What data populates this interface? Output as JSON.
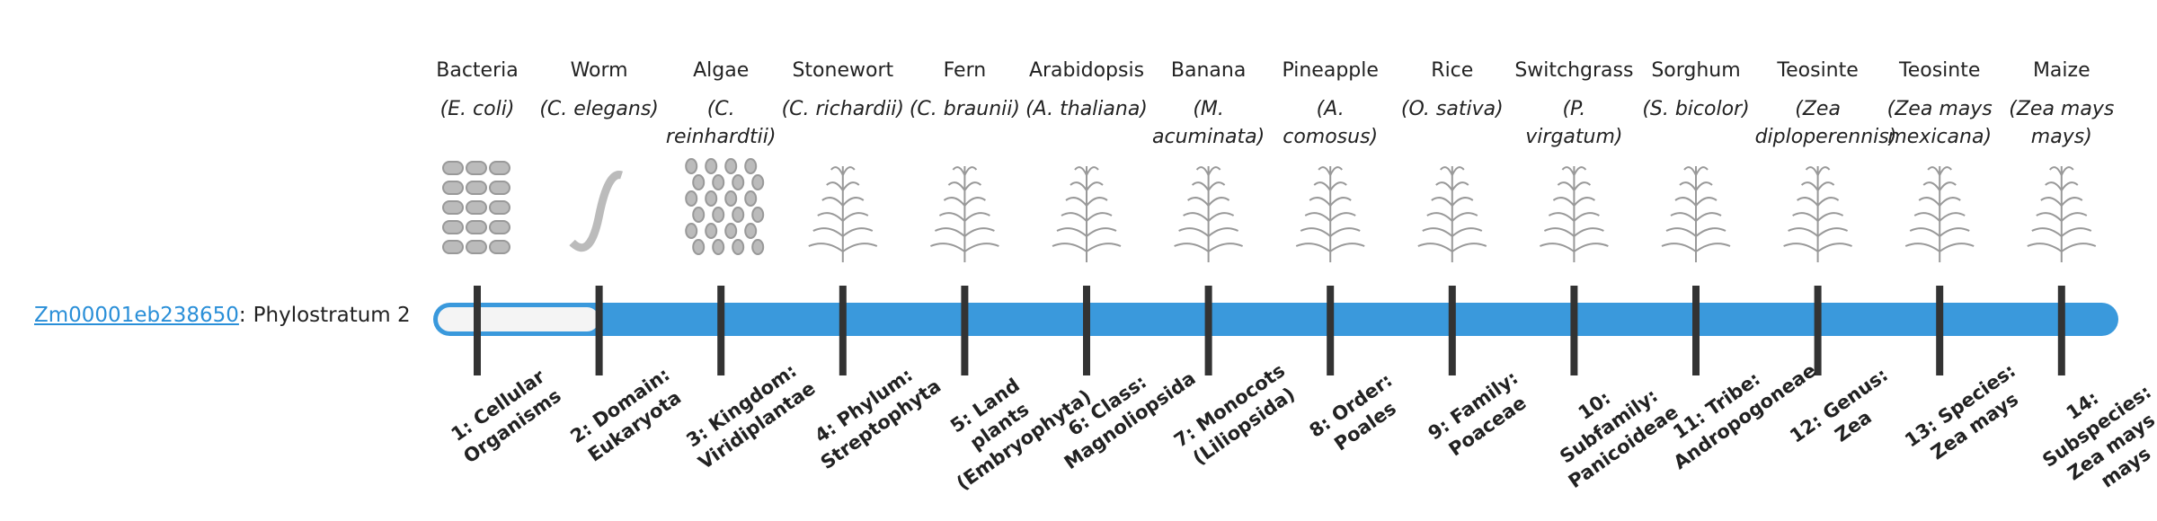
{
  "gene": {
    "gene_id": "Zm00001eb238650",
    "separator": ":",
    "stratum_label": "Phylostratum",
    "stratum": 2
  },
  "columns": [
    {
      "name": "Bacteria",
      "species": "(E. coli)",
      "label": "1: Cellular Organisms"
    },
    {
      "name": "Worm",
      "species": "(C. elegans)",
      "label": "2: Domain: Eukaryota"
    },
    {
      "name": "Algae",
      "species": "(C. reinhardtii)",
      "label": "3: Kingdom: Viridiplantae"
    },
    {
      "name": "Stonewort",
      "species": "(C. richardii)",
      "label": "4: Phylum: Streptophyta"
    },
    {
      "name": "Fern",
      "species": "(C. braunii)",
      "label": "5: Land plants (Embryophyta)"
    },
    {
      "name": "Arabidopsis",
      "species": "(A. thaliana)",
      "label": "6: Class: Magnoliopsida"
    },
    {
      "name": "Banana",
      "species": "(M. acuminata)",
      "label": "7: Monocots (Liliopsida)"
    },
    {
      "name": "Pineapple",
      "species": "(A. comosus)",
      "label": "8: Order: Poales"
    },
    {
      "name": "Rice",
      "species": "(O. sativa)",
      "label": "9: Family: Poaceae"
    },
    {
      "name": "Switchgrass",
      "species": "(P. virgatum)",
      "label": "10: Subfamily: Panicoideae"
    },
    {
      "name": "Sorghum",
      "species": "(S. bicolor)",
      "label": "11: Tribe: Andropogoneae"
    },
    {
      "name": "Teosinte",
      "species": "(Zea diploperennis)",
      "label": "12: Genus: Zea"
    },
    {
      "name": "Teosinte",
      "species": "(Zea mays mexicana)",
      "label": "13: Species: Zea mays"
    },
    {
      "name": "Maize",
      "species": "(Zea mays mays)",
      "label": "14: Subspecies: Zea mays mays"
    }
  ]
}
